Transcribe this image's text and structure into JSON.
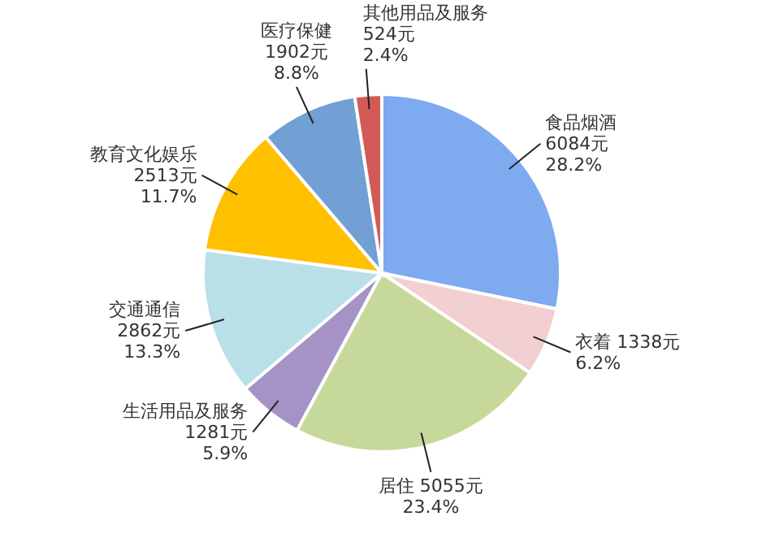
{
  "chart_data": {
    "type": "pie",
    "categories": [
      "食品烟酒",
      "衣着",
      "居住",
      "生活用品及服务",
      "交通通信",
      "教育文化娱乐",
      "医疗保健",
      "其他用品及服务"
    ],
    "values": [
      6084,
      1338,
      5055,
      1281,
      2862,
      2513,
      1902,
      524
    ],
    "value_labels": [
      "6084元\n28.2%",
      "1338元\n6.2%",
      "5055元\n23.4%",
      "1281元\n5.9%",
      "2862元\n13.3%",
      "2513元\n11.7%",
      "1902元\n8.8%",
      "524元\n2.4%"
    ],
    "colors": [
      "#7eaaf0",
      "#f2cfd0",
      "#c6d99a",
      "#a593c6",
      "#b9dfe8",
      "#ffc000",
      "#729fd4",
      "#d15a55"
    ]
  }
}
